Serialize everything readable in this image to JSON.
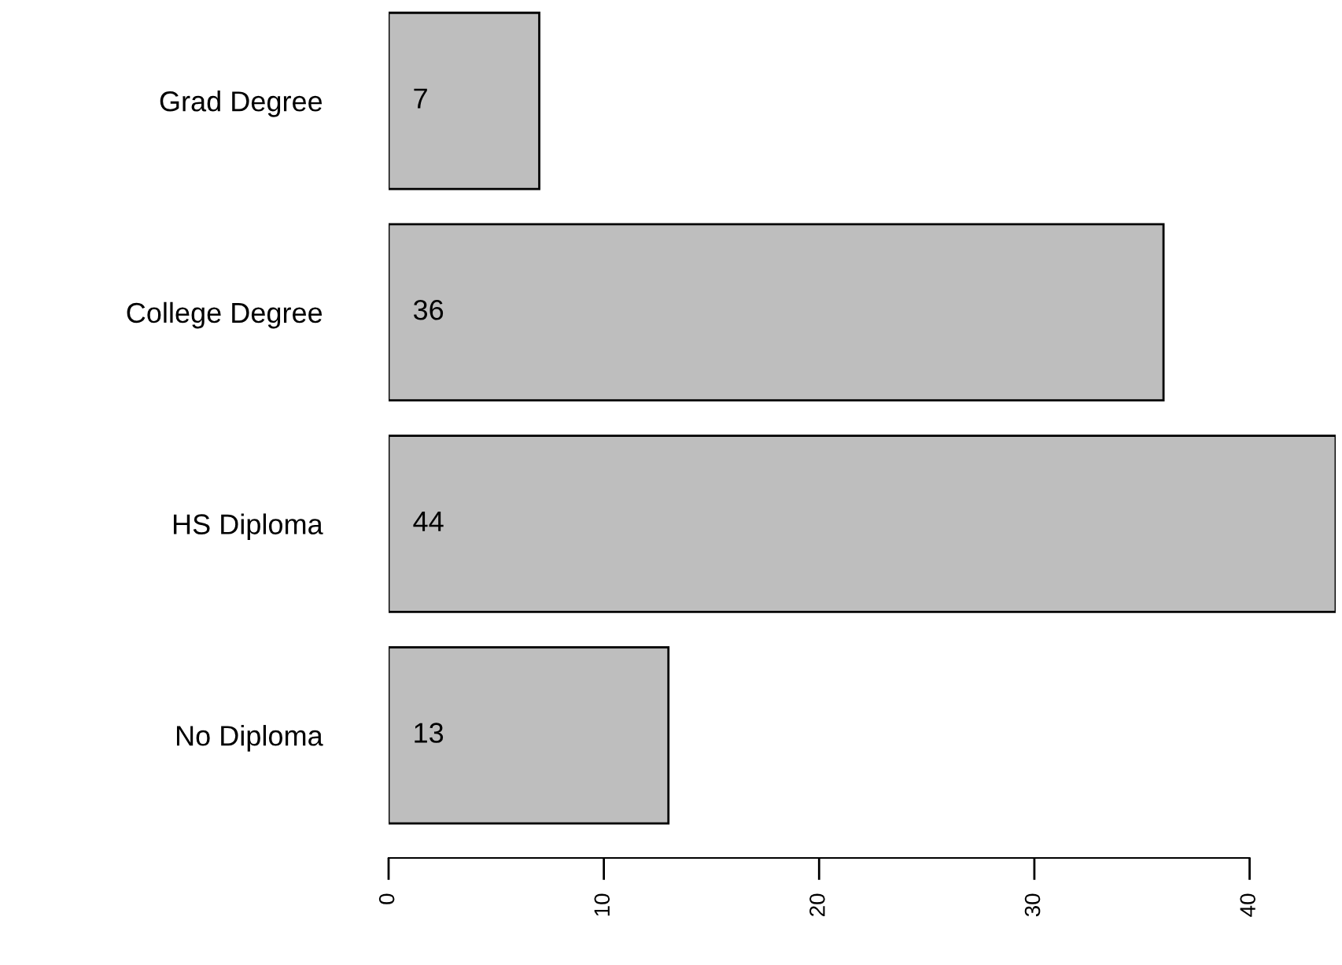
{
  "chart_data": {
    "type": "bar",
    "orientation": "horizontal",
    "categories": [
      "Grad Degree",
      "College Degree",
      "HS Diploma",
      "No Diploma"
    ],
    "values": [
      7,
      36,
      44,
      13
    ],
    "color": "#bebebe",
    "xlim": [
      0,
      44
    ],
    "xticks": [
      0,
      10,
      20,
      30,
      40
    ],
    "data_labels": true,
    "grid": false,
    "legend": false
  }
}
